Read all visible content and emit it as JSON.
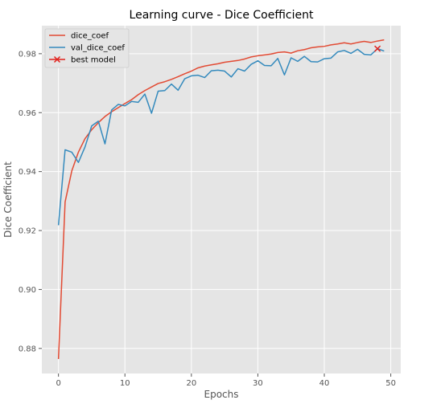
{
  "chart_data": {
    "type": "line",
    "title": "Learning curve - Dice Coefficient",
    "xlabel": "Epochs",
    "ylabel": "Dice Coefficient",
    "xlim": [
      -2.5,
      51.5
    ],
    "ylim": [
      0.8715,
      0.9895
    ],
    "xticks": [
      0,
      10,
      20,
      30,
      40,
      50
    ],
    "yticks": [
      0.88,
      0.9,
      0.92,
      0.94,
      0.96,
      0.98
    ],
    "ytick_labels": [
      "0.88",
      "0.90",
      "0.92",
      "0.94",
      "0.96",
      "0.98"
    ],
    "grid": true,
    "legend_position": "top-left",
    "style": "ggplot",
    "background_color": "#e5e5e5",
    "grid_color": "#ffffff",
    "series": [
      {
        "name": "dice_coef",
        "color": "#e24a33",
        "x": [
          0,
          1,
          2,
          3,
          4,
          5,
          6,
          7,
          8,
          9,
          10,
          11,
          12,
          13,
          14,
          15,
          16,
          17,
          18,
          19,
          20,
          21,
          22,
          23,
          24,
          25,
          26,
          27,
          28,
          29,
          30,
          31,
          32,
          33,
          34,
          35,
          36,
          37,
          38,
          39,
          40,
          41,
          42,
          43,
          44,
          45,
          46,
          47,
          48,
          49
        ],
        "values": [
          0.8764,
          0.9297,
          0.9402,
          0.9466,
          0.9512,
          0.9542,
          0.9566,
          0.9587,
          0.9603,
          0.9617,
          0.9631,
          0.9644,
          0.9661,
          0.9675,
          0.9687,
          0.9699,
          0.9705,
          0.9713,
          0.9722,
          0.9732,
          0.9741,
          0.9752,
          0.9758,
          0.9762,
          0.9766,
          0.9771,
          0.9774,
          0.9777,
          0.9782,
          0.9789,
          0.9793,
          0.9796,
          0.9799,
          0.9804,
          0.9806,
          0.9802,
          0.981,
          0.9814,
          0.982,
          0.9823,
          0.9825,
          0.983,
          0.9833,
          0.9837,
          0.9833,
          0.9838,
          0.9842,
          0.9838,
          0.9843,
          0.9847
        ]
      },
      {
        "name": "val_dice_coef",
        "color": "#348abd",
        "x": [
          0,
          1,
          2,
          3,
          4,
          5,
          6,
          7,
          8,
          9,
          10,
          11,
          12,
          13,
          14,
          15,
          16,
          17,
          18,
          19,
          20,
          21,
          22,
          23,
          24,
          25,
          26,
          27,
          28,
          29,
          30,
          31,
          32,
          33,
          34,
          35,
          36,
          37,
          38,
          39,
          40,
          41,
          42,
          43,
          44,
          45,
          46,
          47,
          48,
          49
        ],
        "values": [
          0.9218,
          0.9474,
          0.9466,
          0.9431,
          0.9484,
          0.9555,
          0.9571,
          0.9494,
          0.9609,
          0.9628,
          0.9623,
          0.9638,
          0.9635,
          0.9663,
          0.9598,
          0.9673,
          0.9675,
          0.9697,
          0.9676,
          0.9715,
          0.9725,
          0.9727,
          0.9719,
          0.9742,
          0.9744,
          0.9741,
          0.9721,
          0.9749,
          0.9741,
          0.9764,
          0.9776,
          0.976,
          0.9759,
          0.9784,
          0.9728,
          0.9786,
          0.9774,
          0.9791,
          0.9773,
          0.9772,
          0.9783,
          0.9785,
          0.9806,
          0.9811,
          0.9801,
          0.9815,
          0.9798,
          0.9796,
          0.9817,
          0.9809
        ]
      }
    ],
    "markers": [
      {
        "name": "best model",
        "color": "#e2211c",
        "x": 48,
        "y": 0.9817,
        "shape": "x"
      }
    ]
  }
}
